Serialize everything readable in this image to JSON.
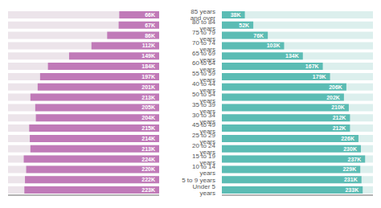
{
  "chart_data": {
    "type": "bar",
    "orientation": "horizontal",
    "categories": [
      "85 years and over",
      "80 to 84 years",
      "75 to 79 years",
      "70 to 74 years",
      "65 to 69 years",
      "60 to 64 years",
      "55 to 59 years",
      "40 to 44 years",
      "50 to 54 years",
      "35 to 39 years",
      "30 to 34 years",
      "45 to 49 years",
      "25 to 29 years",
      "20 to 24 years",
      "15 to 19 years",
      "10 to 14 years",
      "5 to 9 years",
      "Under 5 years"
    ],
    "series": [
      {
        "color": "#c07ab8",
        "values": [
          66,
          67,
          86,
          112,
          149,
          184,
          197,
          201,
          213,
          205,
          204,
          215,
          214,
          213,
          224,
          220,
          222,
          223
        ],
        "value_labels": [
          "66K",
          "67K",
          "86K",
          "112K",
          "149K",
          "184K",
          "197K",
          "201K",
          "213K",
          "205K",
          "204K",
          "215K",
          "214K",
          "213K",
          "224K",
          "220K",
          "222K",
          "223K"
        ]
      },
      {
        "color": "#5bbcb4",
        "values": [
          38,
          52,
          76,
          103,
          134,
          167,
          179,
          206,
          202,
          210,
          212,
          212,
          226,
          230,
          237,
          229,
          231,
          233
        ],
        "value_labels": [
          "38K",
          "52K",
          "76K",
          "103K",
          "134K",
          "167K",
          "179K",
          "206K",
          "202K",
          "210K",
          "212K",
          "212K",
          "226K",
          "230K",
          "237K",
          "229K",
          "231K",
          "233K"
        ]
      }
    ],
    "xlim": [
      0,
      250
    ],
    "data_labels": true,
    "tick_labels": "y",
    "grid": false
  }
}
